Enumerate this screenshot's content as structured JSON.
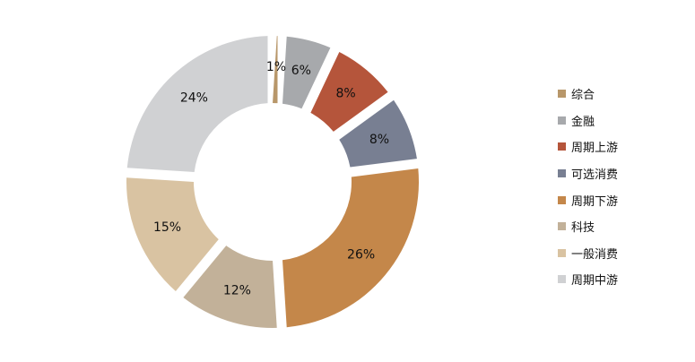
{
  "chart_data": {
    "type": "pie",
    "categories": [
      "综合",
      "金融",
      "周期上游",
      "可选消费",
      "周期下游",
      "科技",
      "一般消费",
      "周期中游"
    ],
    "values": [
      1,
      6,
      8,
      8,
      26,
      12,
      15,
      24
    ],
    "labels": [
      "1%",
      "6%",
      "8%",
      "8%",
      "26%",
      "12%",
      "15%",
      "24%"
    ],
    "colors": [
      "#B8976A",
      "#A7A9AC",
      "#B5553B",
      "#787F92",
      "#C4874A",
      "#C2B199",
      "#D9C3A2",
      "#D0D1D3"
    ],
    "legend_position": "right",
    "title": "",
    "xlabel": "",
    "ylabel": ""
  }
}
